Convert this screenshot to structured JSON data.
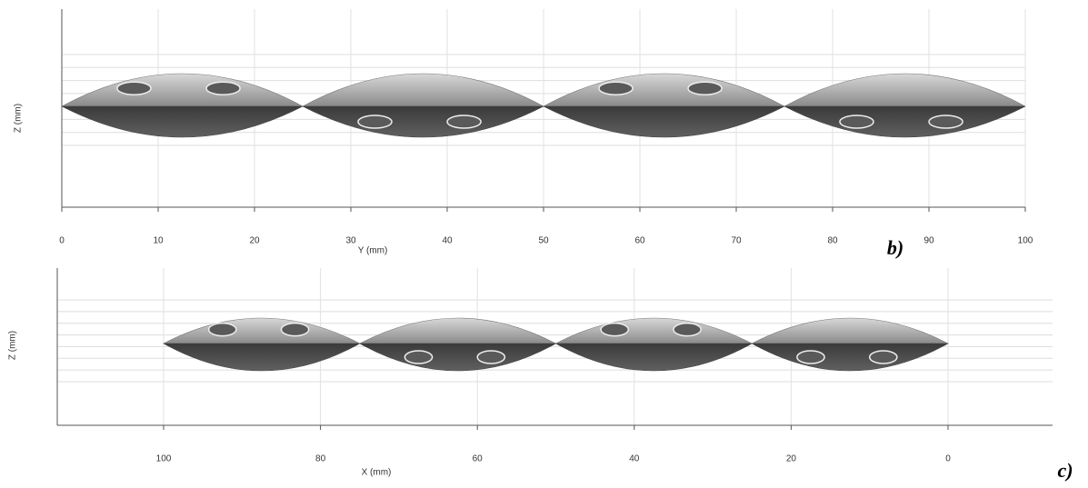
{
  "panels": [
    {
      "y_label": "Z (mm)",
      "x_label": "Y (mm)",
      "x_ticks": [
        "0",
        "10",
        "20",
        "30",
        "40",
        "50",
        "60",
        "70",
        "80",
        "90",
        "100"
      ],
      "panel_label": "b)"
    },
    {
      "y_label": "Z (mm)",
      "x_label": "X (mm)",
      "x_ticks": [
        "100",
        "80",
        "60",
        "40",
        "20",
        "0"
      ],
      "panel_label": "c)"
    }
  ]
}
